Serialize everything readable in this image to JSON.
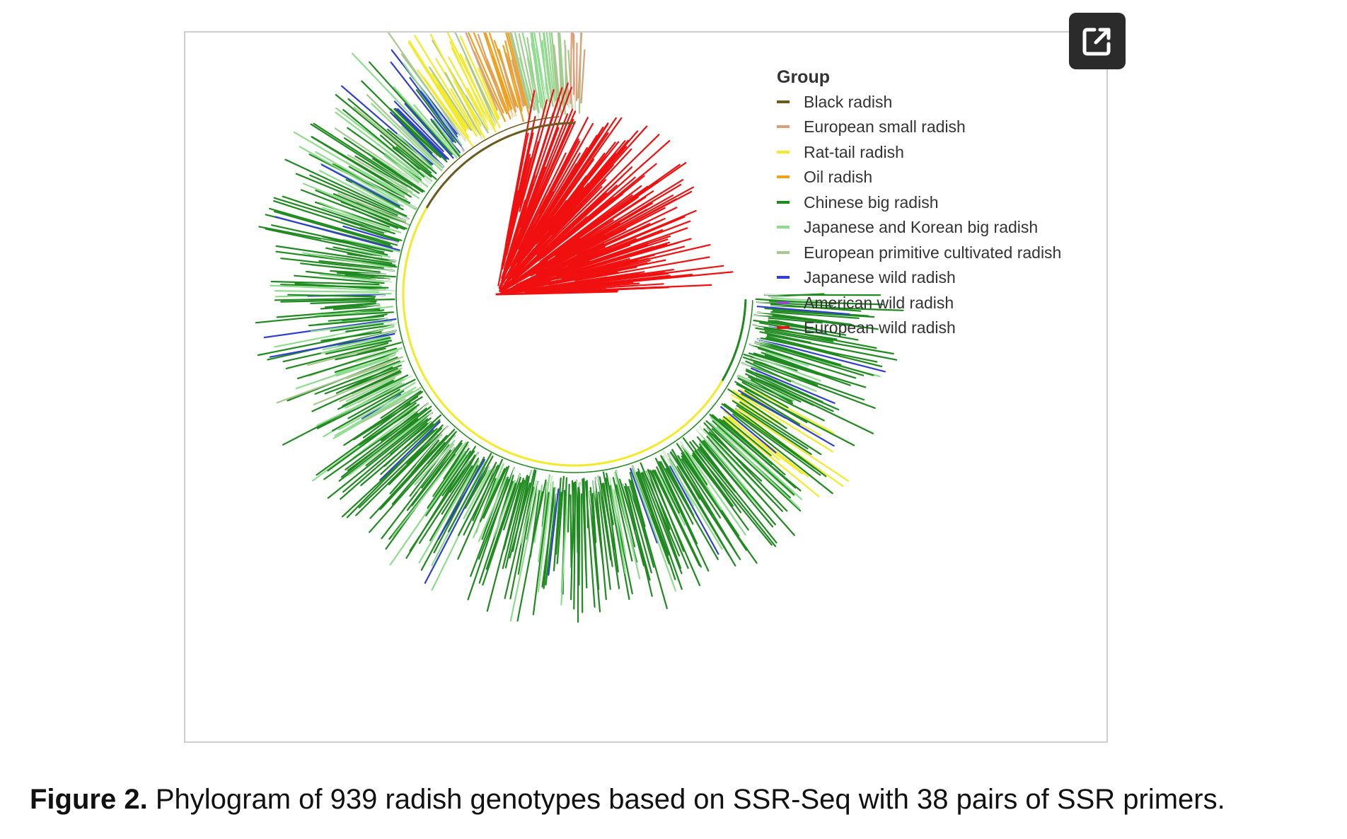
{
  "figure": {
    "legend": {
      "title": "Group",
      "items": [
        {
          "label": "Black radish",
          "color": "#6b5a1e"
        },
        {
          "label": "European small radish",
          "color": "#d9a07a"
        },
        {
          "label": "Rat-tail radish",
          "color": "#f2ea2a"
        },
        {
          "label": "Oil radish",
          "color": "#f0a020"
        },
        {
          "label": "Chinese big radish",
          "color": "#1f8a1f"
        },
        {
          "label": "Japanese and Korean big radish",
          "color": "#8fdc8f"
        },
        {
          "label": "European primitive cultivated radish",
          "color": "#a8c890"
        },
        {
          "label": "Japanese wild radish",
          "color": "#2f3fd0"
        },
        {
          "label": "American wild radish",
          "color": "#8a4fc0"
        },
        {
          "label": "European wild radish",
          "color": "#f01010"
        }
      ]
    },
    "expand_icon": "external-link-icon"
  },
  "caption": {
    "label": "Figure 2.",
    "text": " Phylogram of 939 radish genotypes based on SSR-Seq with 38 pairs of SSR primers."
  }
}
